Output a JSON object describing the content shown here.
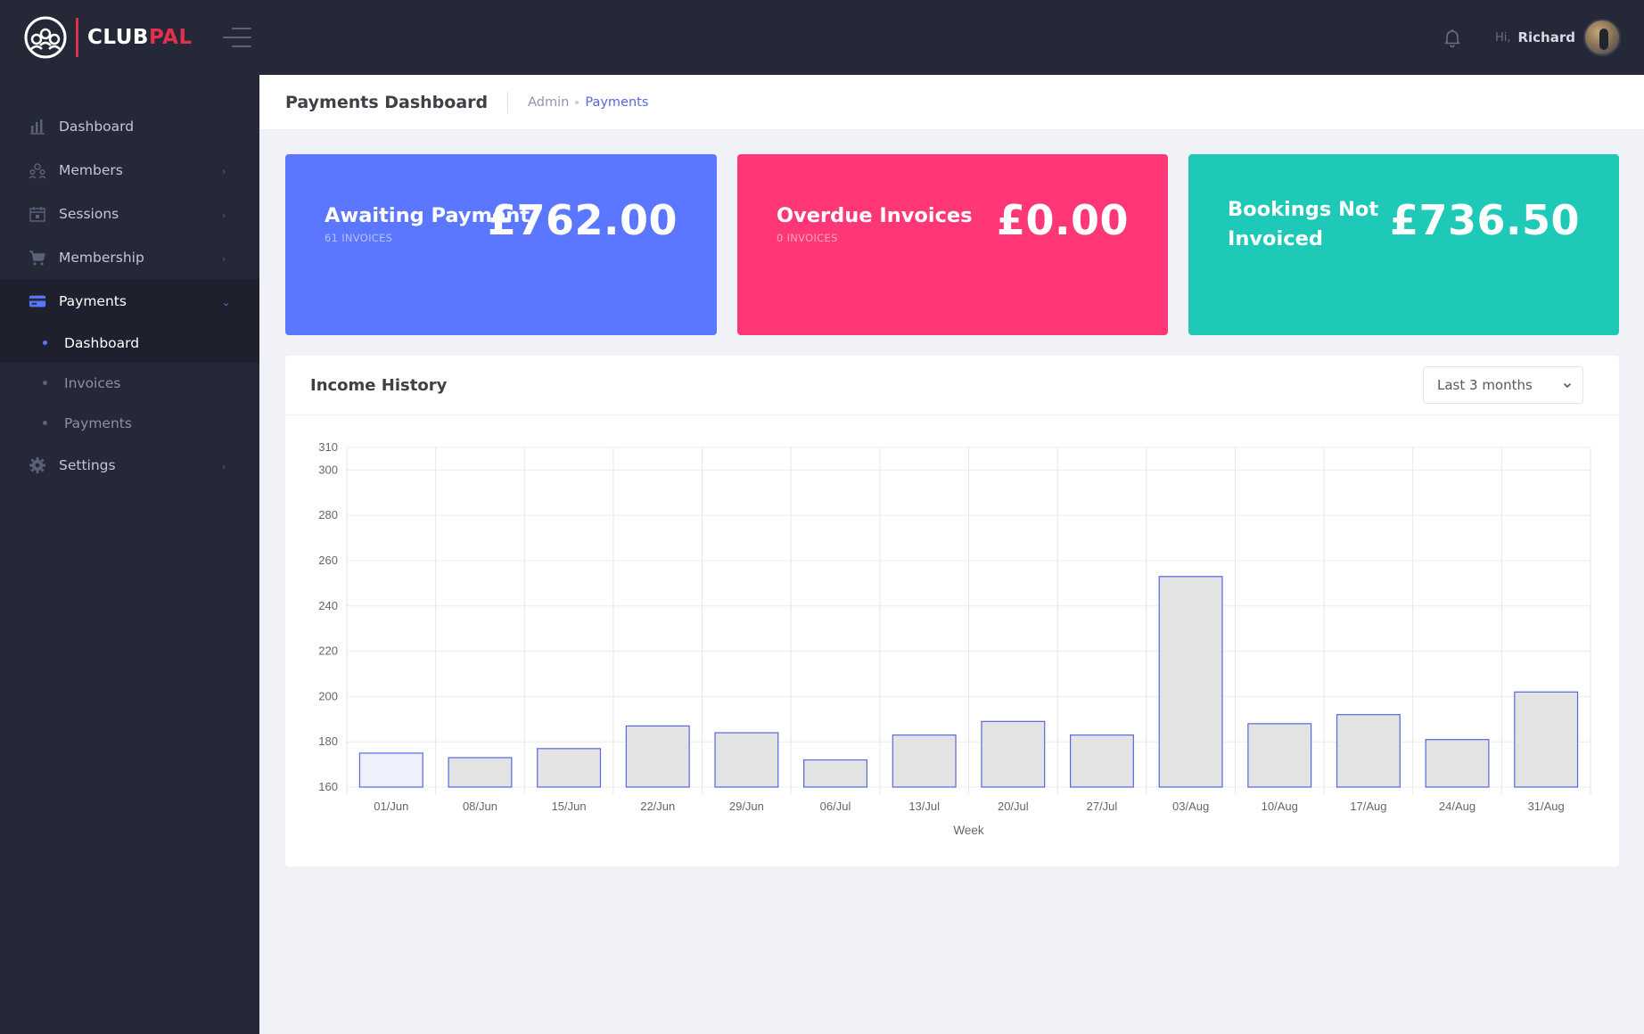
{
  "brand": {
    "name_main": "CLUB",
    "name_accent": "PAL"
  },
  "topbar": {
    "greeting": "Hi,",
    "user_name": "Richard",
    "bell_icon": "bell-icon"
  },
  "sidebar": {
    "items": [
      {
        "label": "Dashboard",
        "icon": "bar-chart-icon",
        "has_children": false
      },
      {
        "label": "Members",
        "icon": "users-icon",
        "has_children": true
      },
      {
        "label": "Sessions",
        "icon": "calendar-icon",
        "has_children": true
      },
      {
        "label": "Membership",
        "icon": "cart-icon",
        "has_children": true
      },
      {
        "label": "Payments",
        "icon": "credit-card-icon",
        "has_children": true,
        "expanded": true
      },
      {
        "label": "Settings",
        "icon": "gear-icon",
        "has_children": true
      }
    ],
    "payments_sub": [
      {
        "label": "Dashboard",
        "active": true
      },
      {
        "label": "Invoices",
        "active": false
      },
      {
        "label": "Payments",
        "active": false
      }
    ]
  },
  "subheader": {
    "title": "Payments Dashboard",
    "breadcrumb": [
      "Admin",
      "Payments"
    ]
  },
  "stats": {
    "awaiting": {
      "label": "Awaiting Payment",
      "sub": "61 INVOICES",
      "value": "£762.00",
      "color": "#5b77ff"
    },
    "overdue": {
      "label": "Overdue Invoices",
      "sub": "0 INVOICES",
      "value": "£0.00",
      "color": "#ff3776"
    },
    "bookings": {
      "label_line1": "Bookings Not",
      "label_line2": "Invoiced",
      "value": "£736.50",
      "color": "#1ec9b7"
    }
  },
  "income": {
    "title": "Income History",
    "range_selected": "Last 3 months"
  },
  "chart_data": {
    "type": "bar",
    "xlabel": "Week",
    "ylabel": "",
    "ylim": [
      160,
      310
    ],
    "yticks": [
      160,
      180,
      200,
      220,
      240,
      260,
      280,
      300,
      310
    ],
    "grid": true,
    "categories": [
      "01/Jun",
      "08/Jun",
      "15/Jun",
      "22/Jun",
      "29/Jun",
      "06/Jul",
      "13/Jul",
      "20/Jul",
      "27/Jul",
      "03/Aug",
      "10/Aug",
      "17/Aug",
      "24/Aug",
      "31/Aug"
    ],
    "values": [
      175,
      173,
      177,
      187,
      184,
      172,
      183,
      189,
      183,
      253,
      188,
      192,
      181,
      202
    ],
    "bar_fill": "#e3e3e3",
    "bar_fill_first": "#eef0fc",
    "bar_stroke": "#5867dd"
  }
}
